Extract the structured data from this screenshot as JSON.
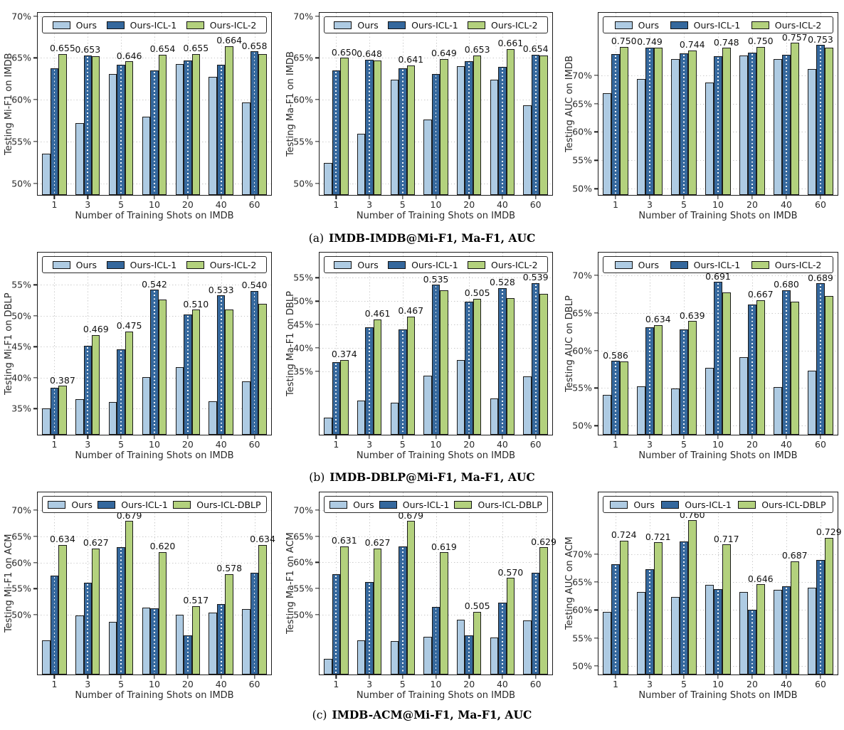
{
  "colors": {
    "ours": "#aecbe3",
    "icl1": "#35689d",
    "icl2": "#b3d17d",
    "grid": "#c9c9c9",
    "edge": "#1b1b1b"
  },
  "captions": [
    {
      "prefix": "(a)",
      "text": "IMDB-IMDB@Mi-F1, Ma-F1, AUC"
    },
    {
      "prefix": "(b)",
      "text": "IMDB-DBLP@Mi-F1, Ma-F1, AUC"
    },
    {
      "prefix": "(c)",
      "text": "IMDB-ACM@Mi-F1, Ma-F1, AUC"
    }
  ],
  "chart_data": [
    {
      "type": "bar",
      "ylabel": "Testing Mi-F1 on IMDB",
      "xlabel": "Number of Training Shots on IMDB",
      "categories": [
        "1",
        "3",
        "5",
        "10",
        "20",
        "40",
        "60"
      ],
      "ylim": [
        48.6,
        70.4
      ],
      "yticks": [
        50,
        55,
        60,
        65,
        70
      ],
      "ytick_labels": [
        "50%",
        "55%",
        "60%",
        "65%",
        "70%"
      ],
      "grid": "dotted",
      "legend_position": "upper center",
      "series": [
        {
          "name": "Ours",
          "color_key": "ours",
          "values": [
            53.5,
            57.2,
            63.1,
            58.0,
            64.3,
            62.7,
            59.7
          ]
        },
        {
          "name": "Ours-ICL-1",
          "color_key": "icl1",
          "hatch": "dotted",
          "values": [
            63.8,
            65.3,
            64.2,
            63.5,
            64.7,
            64.2,
            65.8
          ]
        },
        {
          "name": "Ours-ICL-2",
          "color_key": "icl2",
          "values": [
            65.5,
            65.2,
            64.6,
            65.4,
            65.5,
            66.4,
            65.5
          ]
        }
      ],
      "bar_labels": [
        "0.655",
        "0.653",
        "0.646",
        "0.654",
        "0.655",
        "0.664",
        "0.658"
      ]
    },
    {
      "type": "bar",
      "ylabel": "Testing Ma-F1 on IMDB",
      "xlabel": "Number of Training Shots on IMDB",
      "categories": [
        "1",
        "3",
        "5",
        "10",
        "20",
        "40",
        "60"
      ],
      "ylim": [
        48.6,
        70.4
      ],
      "yticks": [
        50,
        55,
        60,
        65,
        70
      ],
      "ytick_labels": [
        "50%",
        "55%",
        "60%",
        "65%",
        "70%"
      ],
      "grid": "dotted",
      "legend_position": "upper center",
      "series": [
        {
          "name": "Ours",
          "color_key": "ours",
          "values": [
            52.4,
            55.9,
            62.4,
            57.6,
            64.0,
            62.4,
            59.3
          ]
        },
        {
          "name": "Ours-ICL-1",
          "color_key": "icl1",
          "hatch": "dotted",
          "values": [
            63.5,
            64.8,
            63.8,
            63.1,
            64.6,
            63.9,
            65.4
          ]
        },
        {
          "name": "Ours-ICL-2",
          "color_key": "icl2",
          "values": [
            65.0,
            64.7,
            64.1,
            64.9,
            65.3,
            66.1,
            65.3
          ]
        }
      ],
      "bar_labels": [
        "0.650",
        "0.648",
        "0.641",
        "0.649",
        "0.653",
        "0.661",
        "0.654"
      ]
    },
    {
      "type": "bar",
      "ylabel": "Testing AUC on IMDB",
      "xlabel": "Number of Training Shots on IMDB",
      "categories": [
        "1",
        "3",
        "5",
        "10",
        "20",
        "40",
        "60"
      ],
      "ylim": [
        48.9,
        81.0
      ],
      "yticks": [
        50,
        55,
        60,
        65,
        70
      ],
      "ytick_labels": [
        "50%",
        "55%",
        "60%",
        "65%",
        "70%"
      ],
      "grid": "dotted",
      "legend_position": "upper center",
      "series": [
        {
          "name": "Ours",
          "color_key": "ours",
          "values": [
            66.8,
            69.3,
            72.8,
            68.7,
            73.5,
            72.9,
            71.1
          ]
        },
        {
          "name": "Ours-ICL-1",
          "color_key": "icl1",
          "hatch": "dotted",
          "values": [
            73.7,
            74.9,
            73.8,
            73.3,
            74.0,
            73.6,
            75.3
          ]
        },
        {
          "name": "Ours-ICL-2",
          "color_key": "icl2",
          "values": [
            75.0,
            74.8,
            74.4,
            74.8,
            75.0,
            75.7,
            74.9
          ]
        }
      ],
      "bar_labels": [
        "0.750",
        "0.749",
        "0.744",
        "0.748",
        "0.750",
        "0.757",
        "0.753"
      ]
    },
    {
      "type": "bar",
      "ylabel": "Testing Mi-F1 on DBLP",
      "xlabel": "Number of Training Shots on IMDB",
      "categories": [
        "1",
        "3",
        "5",
        "10",
        "20",
        "40",
        "60"
      ],
      "ylim": [
        30.8,
        60.2
      ],
      "yticks": [
        35,
        40,
        45,
        50,
        55
      ],
      "ytick_labels": [
        "35%",
        "40%",
        "45%",
        "50%",
        "55%"
      ],
      "grid": "dotted",
      "legend_position": "upper center",
      "series": [
        {
          "name": "Ours",
          "color_key": "ours",
          "values": [
            35.0,
            36.5,
            36.1,
            40.1,
            41.7,
            36.2,
            39.4
          ]
        },
        {
          "name": "Ours-ICL-1",
          "color_key": "icl1",
          "hatch": "dotted",
          "values": [
            38.4,
            45.2,
            44.6,
            54.2,
            50.2,
            53.3,
            54.0
          ]
        },
        {
          "name": "Ours-ICL-2",
          "color_key": "icl2",
          "values": [
            38.7,
            46.9,
            47.5,
            52.6,
            51.0,
            51.0,
            51.9
          ]
        }
      ],
      "bar_labels": [
        "0.387",
        "0.469",
        "0.475",
        "0.542",
        "0.510",
        "0.533",
        "0.540"
      ]
    },
    {
      "type": "bar",
      "ylabel": "Testing Ma-F1 on DBLP",
      "xlabel": "Number of Training Shots on IMDB",
      "categories": [
        "1",
        "3",
        "5",
        "10",
        "20",
        "40",
        "60"
      ],
      "ylim": [
        21.4,
        60.4
      ],
      "yticks": [
        35,
        40,
        45,
        50,
        55
      ],
      "ytick_labels": [
        "35%",
        "40%",
        "45%",
        "50%",
        "55%"
      ],
      "grid": "dotted",
      "legend_position": "upper center",
      "series": [
        {
          "name": "Ours",
          "color_key": "ours",
          "values": [
            25.0,
            28.7,
            28.2,
            34.0,
            37.4,
            29.2,
            33.9
          ]
        },
        {
          "name": "Ours-ICL-1",
          "color_key": "icl1",
          "hatch": "dotted",
          "values": [
            37.0,
            44.4,
            43.9,
            53.5,
            49.9,
            52.8,
            53.9
          ]
        },
        {
          "name": "Ours-ICL-2",
          "color_key": "icl2",
          "values": [
            37.4,
            46.1,
            46.7,
            52.4,
            50.5,
            50.6,
            51.5
          ]
        }
      ],
      "bar_labels": [
        "0.374",
        "0.461",
        "0.467",
        "0.535",
        "0.505",
        "0.528",
        "0.539"
      ]
    },
    {
      "type": "bar",
      "ylabel": "Testing AUC on DBLP",
      "xlabel": "Number of Training Shots on IMDB",
      "categories": [
        "1",
        "3",
        "5",
        "10",
        "20",
        "40",
        "60"
      ],
      "ylim": [
        48.8,
        73.0
      ],
      "yticks": [
        50,
        55,
        60,
        65,
        70
      ],
      "ytick_labels": [
        "50%",
        "55%",
        "60%",
        "65%",
        "70%"
      ],
      "grid": "dotted",
      "legend_position": "upper center",
      "series": [
        {
          "name": "Ours",
          "color_key": "ours",
          "values": [
            54.1,
            55.2,
            54.9,
            57.7,
            59.1,
            55.1,
            57.3
          ]
        },
        {
          "name": "Ours-ICL-1",
          "color_key": "icl1",
          "hatch": "dotted",
          "values": [
            58.6,
            63.1,
            62.8,
            69.1,
            66.1,
            68.0,
            68.9
          ]
        },
        {
          "name": "Ours-ICL-2",
          "color_key": "icl2",
          "values": [
            58.5,
            63.4,
            63.9,
            67.7,
            66.7,
            66.5,
            67.2
          ]
        }
      ],
      "bar_labels": [
        "0.586",
        "0.634",
        "0.639",
        "0.691",
        "0.667",
        "0.680",
        "0.689"
      ]
    },
    {
      "type": "bar",
      "ylabel": "Testing Mi-F1 on ACM",
      "xlabel": "Number of Training Shots on IMDB",
      "categories": [
        "1",
        "3",
        "5",
        "10",
        "20",
        "40",
        "60"
      ],
      "ylim": [
        38.6,
        73.4
      ],
      "yticks": [
        50,
        55,
        60,
        65,
        70
      ],
      "ytick_labels": [
        "50%",
        "55%",
        "60%",
        "65%",
        "70%"
      ],
      "grid": "dotted",
      "legend_position": "upper center",
      "series": [
        {
          "name": "Ours",
          "color_key": "ours",
          "values": [
            45.1,
            49.9,
            48.6,
            51.4,
            50.0,
            50.4,
            51.1
          ]
        },
        {
          "name": "Ours-ICL-1",
          "color_key": "icl1",
          "hatch": "dotted",
          "values": [
            57.5,
            56.2,
            62.9,
            51.3,
            46.1,
            52.0,
            58.1
          ]
        },
        {
          "name": "Ours-ICL-DBLP",
          "color_key": "icl2",
          "values": [
            63.4,
            62.7,
            67.9,
            62.0,
            51.7,
            57.8,
            63.4
          ]
        }
      ],
      "bar_labels": [
        "0.634",
        "0.627",
        "0.679",
        "0.620",
        "0.517",
        "0.578",
        "0.634"
      ]
    },
    {
      "type": "bar",
      "ylabel": "Testing Ma-F1 on ACM",
      "xlabel": "Number of Training Shots on IMDB",
      "categories": [
        "1",
        "3",
        "5",
        "10",
        "20",
        "40",
        "60"
      ],
      "ylim": [
        38.5,
        73.4
      ],
      "yticks": [
        50,
        55,
        60,
        65,
        70
      ],
      "ytick_labels": [
        "50%",
        "55%",
        "60%",
        "65%",
        "70%"
      ],
      "grid": "dotted",
      "legend_position": "upper center",
      "series": [
        {
          "name": "Ours",
          "color_key": "ours",
          "values": [
            41.5,
            45.0,
            44.9,
            45.7,
            49.0,
            45.6,
            48.8
          ]
        },
        {
          "name": "Ours-ICL-1",
          "color_key": "icl1",
          "hatch": "dotted",
          "values": [
            57.7,
            56.2,
            63.1,
            51.5,
            46.0,
            52.3,
            58.0
          ]
        },
        {
          "name": "Ours-ICL-DBLP",
          "color_key": "icl2",
          "values": [
            63.1,
            62.7,
            67.9,
            61.9,
            50.5,
            57.0,
            62.9
          ]
        }
      ],
      "bar_labels": [
        "0.631",
        "0.627",
        "0.679",
        "0.619",
        "0.505",
        "0.570",
        "0.629"
      ]
    },
    {
      "type": "bar",
      "ylabel": "Testing AUC on ACM",
      "xlabel": "Number of Training Shots on IMDB",
      "categories": [
        "1",
        "3",
        "5",
        "10",
        "20",
        "40",
        "60"
      ],
      "ylim": [
        48.5,
        81.0
      ],
      "yticks": [
        50,
        55,
        60,
        65,
        70
      ],
      "ytick_labels": [
        "50%",
        "55%",
        "60%",
        "65%",
        "70%"
      ],
      "grid": "dotted",
      "legend_position": "upper center",
      "series": [
        {
          "name": "Ours",
          "color_key": "ours",
          "values": [
            59.7,
            63.2,
            62.3,
            64.5,
            63.2,
            63.6,
            64.0
          ]
        },
        {
          "name": "Ours-ICL-1",
          "color_key": "icl1",
          "hatch": "dotted",
          "values": [
            68.2,
            67.3,
            72.3,
            63.7,
            60.1,
            64.3,
            68.9
          ]
        },
        {
          "name": "Ours-ICL-DBLP",
          "color_key": "icl2",
          "values": [
            72.4,
            72.1,
            76.0,
            71.7,
            64.6,
            68.7,
            72.9
          ]
        }
      ],
      "bar_labels": [
        "0.724",
        "0.721",
        "0.760",
        "0.717",
        "0.646",
        "0.687",
        "0.729"
      ]
    }
  ]
}
